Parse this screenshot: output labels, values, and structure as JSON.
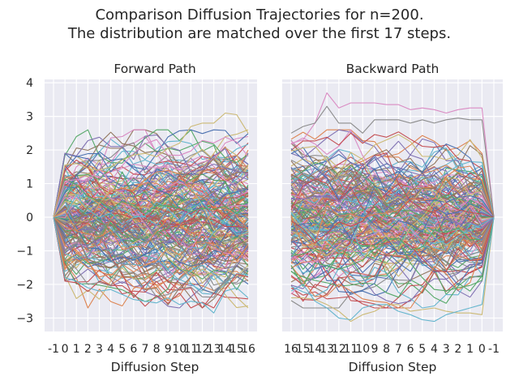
{
  "figure": {
    "title_line1": "Comparison Diffusion Trajectories for n=200.",
    "title_line2": "The distribution are matched over the first 17 steps."
  },
  "chart_data": [
    {
      "type": "line",
      "title": "Forward Path",
      "xlabel": "Diffusion Step",
      "ylabel": "",
      "x": [
        -1,
        0,
        1,
        2,
        3,
        4,
        5,
        6,
        7,
        8,
        9,
        10,
        11,
        12,
        13,
        14,
        15,
        16
      ],
      "x_tick_labels": [
        "-1",
        "0",
        "1",
        "2",
        "3",
        "4",
        "5",
        "6",
        "7",
        "8",
        "9",
        "10",
        "11",
        "12",
        "13",
        "14",
        "15",
        "16"
      ],
      "ylim": [
        -3.4,
        4.1
      ],
      "y_ticks": [
        4,
        3,
        2,
        1,
        0,
        -1,
        -2,
        -3
      ],
      "y_tick_labels": [
        "4",
        "3",
        "2",
        "1",
        "0",
        "−1",
        "−2",
        "−3"
      ],
      "grid": true,
      "n_series": 200,
      "start_value": 0,
      "highlighted_extremes": [
        {
          "values": [
            0,
            1.55,
            1.6,
            1.45,
            1.4,
            1.5,
            1.7,
            1.85,
            1.9,
            1.8,
            2.05,
            2.2,
            2.7,
            2.8,
            2.8,
            3.1,
            3.05,
            2.5
          ]
        },
        {
          "values": [
            0,
            -1.8,
            -1.9,
            -2.1,
            -2.2,
            -2.15,
            -2.3,
            -2.45,
            -2.5,
            -2.55,
            -2.4,
            -2.6,
            -2.5,
            -2.55,
            -2.85,
            -2.2,
            -2.1,
            -2.4
          ]
        }
      ]
    },
    {
      "type": "line",
      "title": "Backward Path",
      "xlabel": "Diffusion Step",
      "ylabel": "",
      "x": [
        16,
        15,
        14,
        13,
        12,
        11,
        10,
        9,
        8,
        7,
        6,
        5,
        4,
        3,
        2,
        1,
        0,
        -1
      ],
      "x_tick_labels": [
        "16",
        "15",
        "14",
        "13",
        "12",
        "11",
        "10",
        "9",
        "8",
        "7",
        "6",
        "5",
        "4",
        "3",
        "2",
        "1",
        "0",
        "-1"
      ],
      "ylim": [
        -3.4,
        4.1
      ],
      "grid": true,
      "n_series": 200,
      "end_value": 0,
      "highlighted_extremes": [
        {
          "values": [
            2.2,
            2.3,
            2.8,
            3.7,
            3.25,
            3.4,
            3.4,
            3.4,
            3.35,
            3.35,
            3.2,
            3.25,
            3.2,
            3.1,
            3.2,
            3.25,
            3.25,
            0
          ]
        },
        {
          "values": [
            2.5,
            2.7,
            2.8,
            3.3,
            2.8,
            2.8,
            2.5,
            2.9,
            2.9,
            2.9,
            2.8,
            2.9,
            2.8,
            2.9,
            2.95,
            2.9,
            2.9,
            0
          ]
        },
        {
          "values": [
            -2.4,
            -2.4,
            -2.45,
            -2.6,
            -2.8,
            -3.1,
            -2.9,
            -2.8,
            -2.6,
            -2.6,
            -2.8,
            -2.75,
            -2.7,
            -2.8,
            -2.85,
            -2.85,
            -2.9,
            0
          ]
        },
        {
          "values": [
            -2.2,
            -2.0,
            -2.5,
            -2.7,
            -3.0,
            -3.05,
            -2.7,
            -2.6,
            -2.6,
            -2.8,
            -2.9,
            -3.05,
            -3.1,
            -2.9,
            -2.8,
            -2.7,
            -2.6,
            0
          ]
        }
      ]
    }
  ]
}
